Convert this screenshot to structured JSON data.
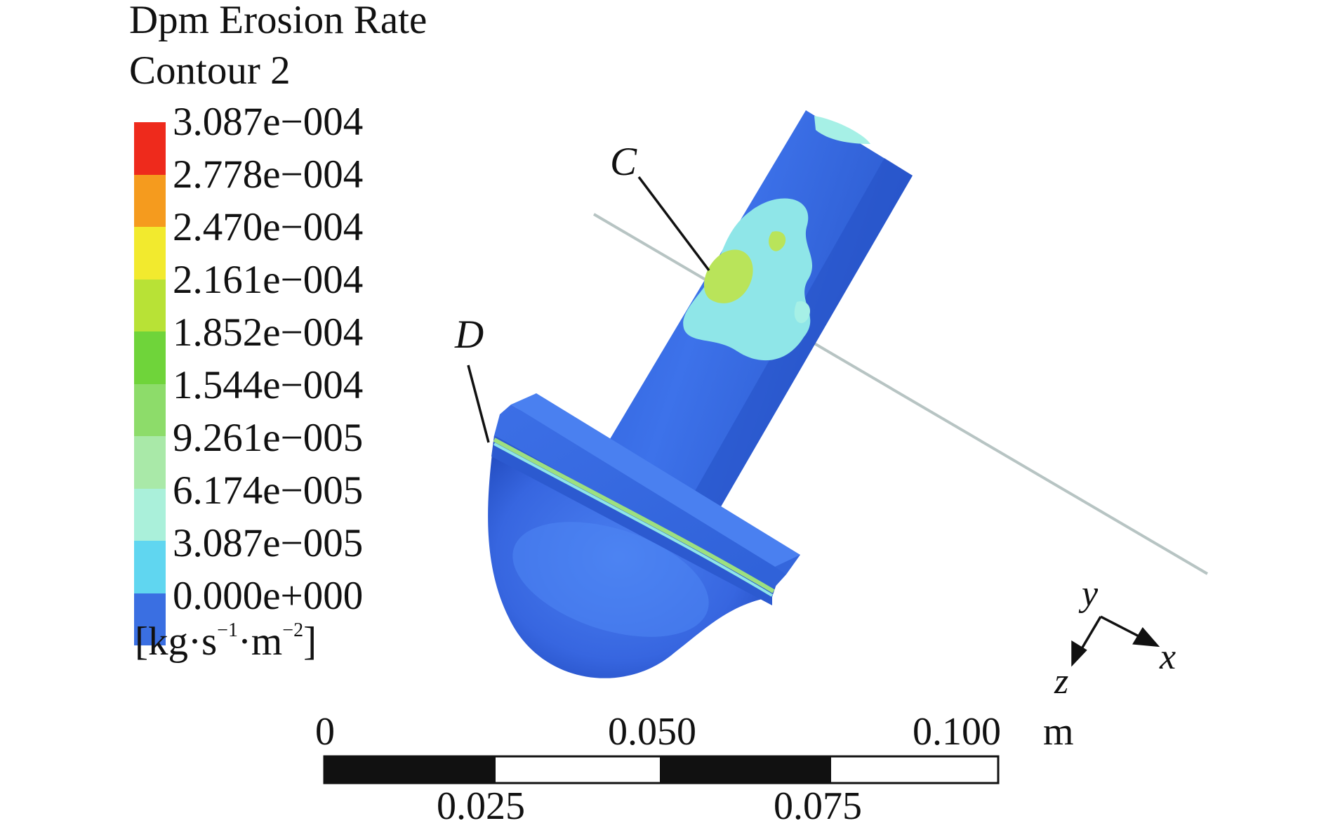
{
  "title": [
    "Dpm Erosion Rate",
    "Contour 2"
  ],
  "legend": {
    "labels": [
      "3.087e−004",
      "2.778e−004",
      "2.470e−004",
      "2.161e−004",
      "1.852e−004",
      "1.544e−004",
      "9.261e−005",
      "6.174e−005",
      "3.087e−005",
      "0.000e+000"
    ],
    "colors": [
      "#ee2a1c",
      "#f59b1e",
      "#f2ea2e",
      "#b8e236",
      "#6fd43a",
      "#8ddc6a",
      "#a9e9a8",
      "#aaf0da",
      "#60d6f0",
      "#3a6fe2"
    ],
    "units": {
      "prefix": "[kg·s",
      "exp1": "−1",
      "middle": "·m",
      "exp2": "−2",
      "suffix": "]"
    }
  },
  "points": {
    "c": "C",
    "d": "D"
  },
  "axes": {
    "y": "y",
    "x": "x",
    "z": "z"
  },
  "scale_bar": {
    "top_labels": [
      "0",
      "0.050",
      "0.100"
    ],
    "unit": "m",
    "bottom_labels": [
      "0.025",
      "0.075"
    ]
  }
}
